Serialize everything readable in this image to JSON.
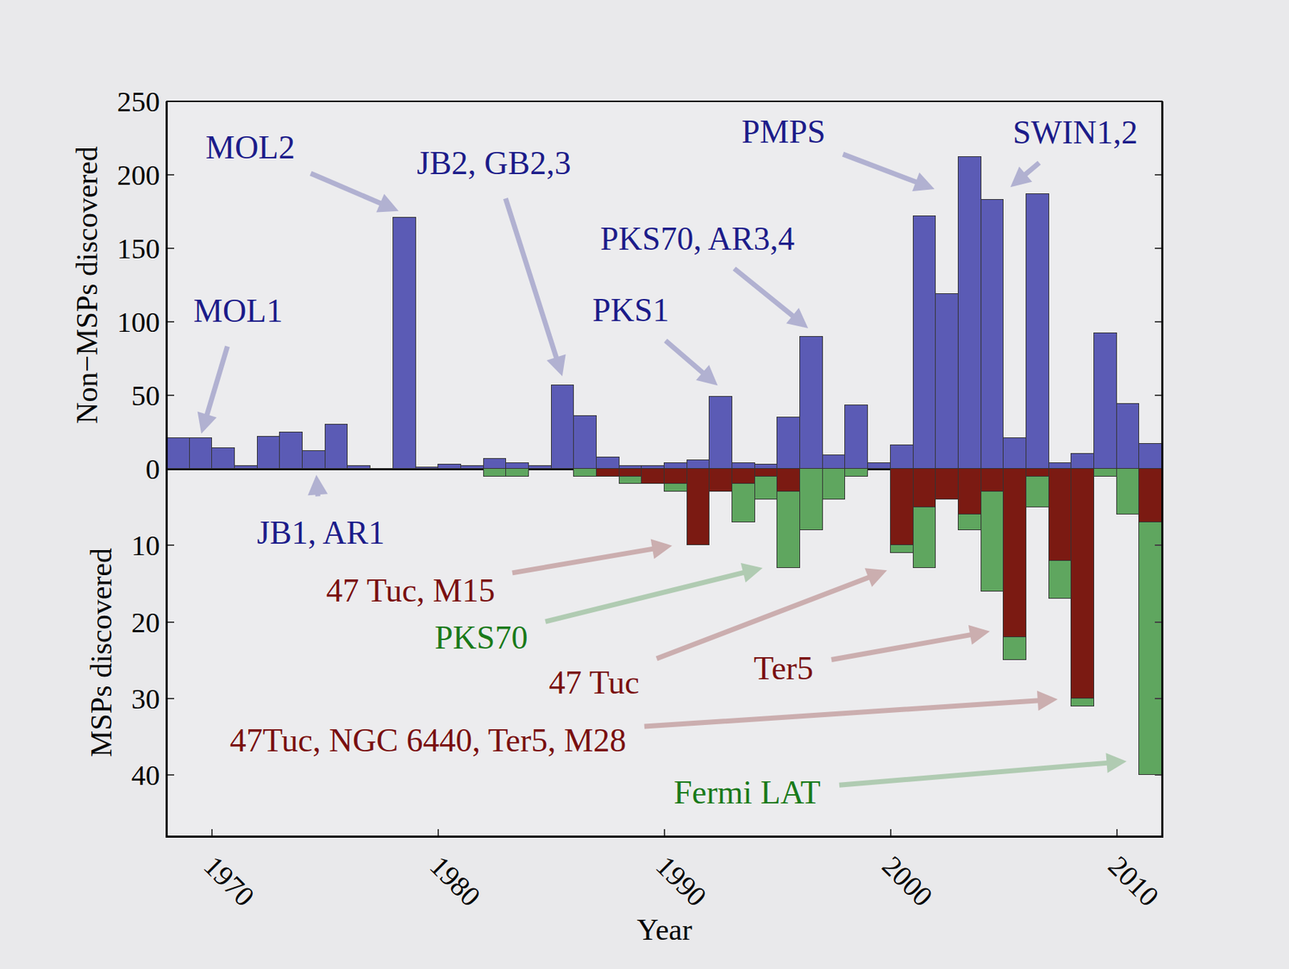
{
  "chart_data": {
    "type": "bar",
    "xlabel": "Year",
    "ylabel": "Non−MSPs discovered",
    "y2label": "MSPs discovered",
    "x": [
      1968,
      1969,
      1970,
      1971,
      1972,
      1973,
      1974,
      1975,
      1976,
      1977,
      1978,
      1979,
      1980,
      1981,
      1982,
      1983,
      1984,
      1985,
      1986,
      1987,
      1988,
      1989,
      1990,
      1991,
      1992,
      1993,
      1994,
      1995,
      1996,
      1997,
      1998,
      1999,
      2000,
      2001,
      2002,
      2003,
      2004,
      2005,
      2006,
      2007,
      2008,
      2009,
      2010,
      2011
    ],
    "xlim": [
      1968,
      2012
    ],
    "xticks": [
      1970,
      1980,
      1990,
      2000,
      2010
    ],
    "ylim": [
      0,
      250
    ],
    "yticks": [
      0,
      50,
      100,
      150,
      200,
      250
    ],
    "y2lim": [
      48,
      0
    ],
    "y2ticks": [
      10,
      20,
      30,
      40
    ],
    "stacked": true,
    "grid": false,
    "series": [
      {
        "axis": "y",
        "color": "#5b5bb5",
        "values": [
          21,
          21,
          14,
          2,
          22,
          25,
          12,
          30,
          2,
          0,
          171,
          1,
          3,
          2,
          7,
          4,
          2,
          57,
          36,
          8,
          2,
          2,
          4,
          6,
          49,
          4,
          3,
          35,
          90,
          9,
          43,
          4,
          16,
          172,
          119,
          212,
          183,
          21,
          187,
          4,
          10,
          92,
          44,
          17
        ]
      },
      {
        "axis": "y2",
        "color": "#7b1a12",
        "values": [
          0,
          0,
          0,
          0,
          0,
          0,
          0,
          0,
          0,
          0,
          0,
          0,
          0,
          0,
          0,
          0,
          0,
          0,
          0,
          1,
          1,
          2,
          2,
          10,
          3,
          2,
          1,
          3,
          0,
          0,
          0,
          0,
          10,
          5,
          4,
          6,
          3,
          22,
          1,
          12,
          30,
          0,
          0,
          7
        ]
      },
      {
        "axis": "y2",
        "color": "#5fa65f",
        "values": [
          0,
          0,
          0,
          0,
          0,
          0,
          0,
          0,
          0,
          0,
          0,
          0,
          0,
          0,
          1,
          1,
          0,
          0,
          1,
          0,
          1,
          0,
          1,
          0,
          0,
          5,
          3,
          10,
          8,
          4,
          1,
          0,
          1,
          8,
          0,
          2,
          13,
          3,
          4,
          5,
          1,
          1,
          6,
          33
        ]
      }
    ],
    "annotations": [
      {
        "text": "MOL1",
        "x": 1969.5,
        "y": 23,
        "axis": "y",
        "color": "#1c1c8a"
      },
      {
        "text": "MOL2",
        "x": 1978.3,
        "y": 175,
        "axis": "y",
        "color": "#1c1c8a"
      },
      {
        "text": "JB2, GB2,3",
        "x": 1985.5,
        "y": 62,
        "axis": "y",
        "color": "#1c1c8a"
      },
      {
        "text": "PKS1",
        "x": 1992.4,
        "y": 56,
        "axis": "y",
        "color": "#1c1c8a"
      },
      {
        "text": "PKS70, AR3,4",
        "x": 1996.4,
        "y": 95,
        "axis": "y",
        "color": "#1c1c8a"
      },
      {
        "text": "PMPS",
        "x": 2002.0,
        "y": 190,
        "axis": "y",
        "color": "#1c1c8a"
      },
      {
        "text": "SWIN1,2",
        "x": 2005.25,
        "y": 191,
        "axis": "y",
        "color": "#1c1c8a"
      },
      {
        "text": "JB1, AR1",
        "x": 1974.6,
        "y": 0.6,
        "axis": "y2",
        "color": "#1c1c8a"
      },
      {
        "text": "47 Tuc, M15",
        "x": 1990.4,
        "y": 10,
        "axis": "y2",
        "color": "#7a1010"
      },
      {
        "text": "PKS70",
        "x": 1994.4,
        "y": 12.9,
        "axis": "y2",
        "color": "#1a7a1a"
      },
      {
        "text": "47 Tuc",
        "x": 1999.9,
        "y": 13.2,
        "axis": "y2",
        "color": "#7a1010"
      },
      {
        "text": "Ter5",
        "x": 2004.45,
        "y": 21.2,
        "axis": "y2",
        "color": "#7a1010"
      },
      {
        "text": "47Tuc, NGC 6440, Ter5, M28",
        "x": 2007.45,
        "y": 30.1,
        "axis": "y2",
        "color": "#7a1010"
      },
      {
        "text": "Fermi LAT",
        "x": 2010.5,
        "y": 38.2,
        "axis": "y2",
        "color": "#1a7a1a"
      }
    ]
  }
}
